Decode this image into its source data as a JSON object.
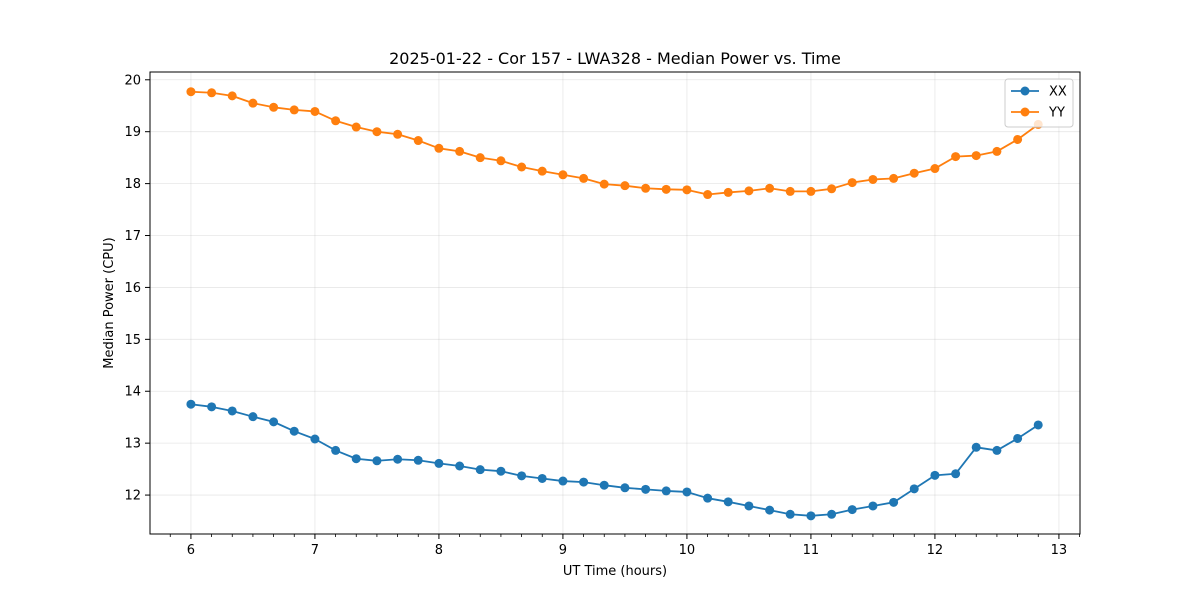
{
  "chart_data": {
    "type": "line",
    "title": "2025-01-22 - Cor 157 - LWA328 - Median Power vs. Time",
    "xlabel": "UT Time (hours)",
    "ylabel": "Median Power (CPU)",
    "xlim": [
      5.67,
      13.17
    ],
    "ylim": [
      11.25,
      20.15
    ],
    "xticks": [
      6,
      7,
      8,
      9,
      10,
      11,
      12,
      13
    ],
    "yticks": [
      12,
      13,
      14,
      15,
      16,
      17,
      18,
      19,
      20
    ],
    "grid": true,
    "legend_position": "top-right",
    "x": [
      6.0,
      6.167,
      6.333,
      6.5,
      6.667,
      6.833,
      7.0,
      7.167,
      7.333,
      7.5,
      7.667,
      7.833,
      8.0,
      8.167,
      8.333,
      8.5,
      8.667,
      8.833,
      9.0,
      9.167,
      9.333,
      9.5,
      9.667,
      9.833,
      10.0,
      10.167,
      10.333,
      10.5,
      10.667,
      10.833,
      11.0,
      11.167,
      11.333,
      11.5,
      11.667,
      11.833,
      12.0,
      12.167,
      12.333,
      12.5,
      12.667,
      12.833
    ],
    "series": [
      {
        "name": "XX",
        "color": "#1f77b4",
        "values": [
          13.75,
          13.7,
          13.62,
          13.51,
          13.41,
          13.23,
          13.08,
          12.86,
          12.7,
          12.66,
          12.69,
          12.67,
          12.61,
          12.56,
          12.49,
          12.46,
          12.37,
          12.32,
          12.27,
          12.25,
          12.19,
          12.14,
          12.11,
          12.08,
          12.06,
          11.94,
          11.87,
          11.79,
          11.71,
          11.63,
          11.6,
          11.63,
          11.72,
          11.79,
          11.86,
          12.12,
          12.38,
          12.41,
          12.92,
          12.86,
          13.09,
          13.35
        ]
      },
      {
        "name": "YY",
        "color": "#ff7f0e",
        "values": [
          19.77,
          19.75,
          19.69,
          19.55,
          19.47,
          19.42,
          19.39,
          19.21,
          19.09,
          19.0,
          18.95,
          18.83,
          18.68,
          18.62,
          18.5,
          18.44,
          18.32,
          18.24,
          18.17,
          18.1,
          17.99,
          17.96,
          17.91,
          17.89,
          17.88,
          17.79,
          17.83,
          17.86,
          17.91,
          17.85,
          17.85,
          17.9,
          18.02,
          18.08,
          18.1,
          18.2,
          18.29,
          18.52,
          18.54,
          18.62,
          18.85,
          19.14
        ]
      }
    ]
  }
}
